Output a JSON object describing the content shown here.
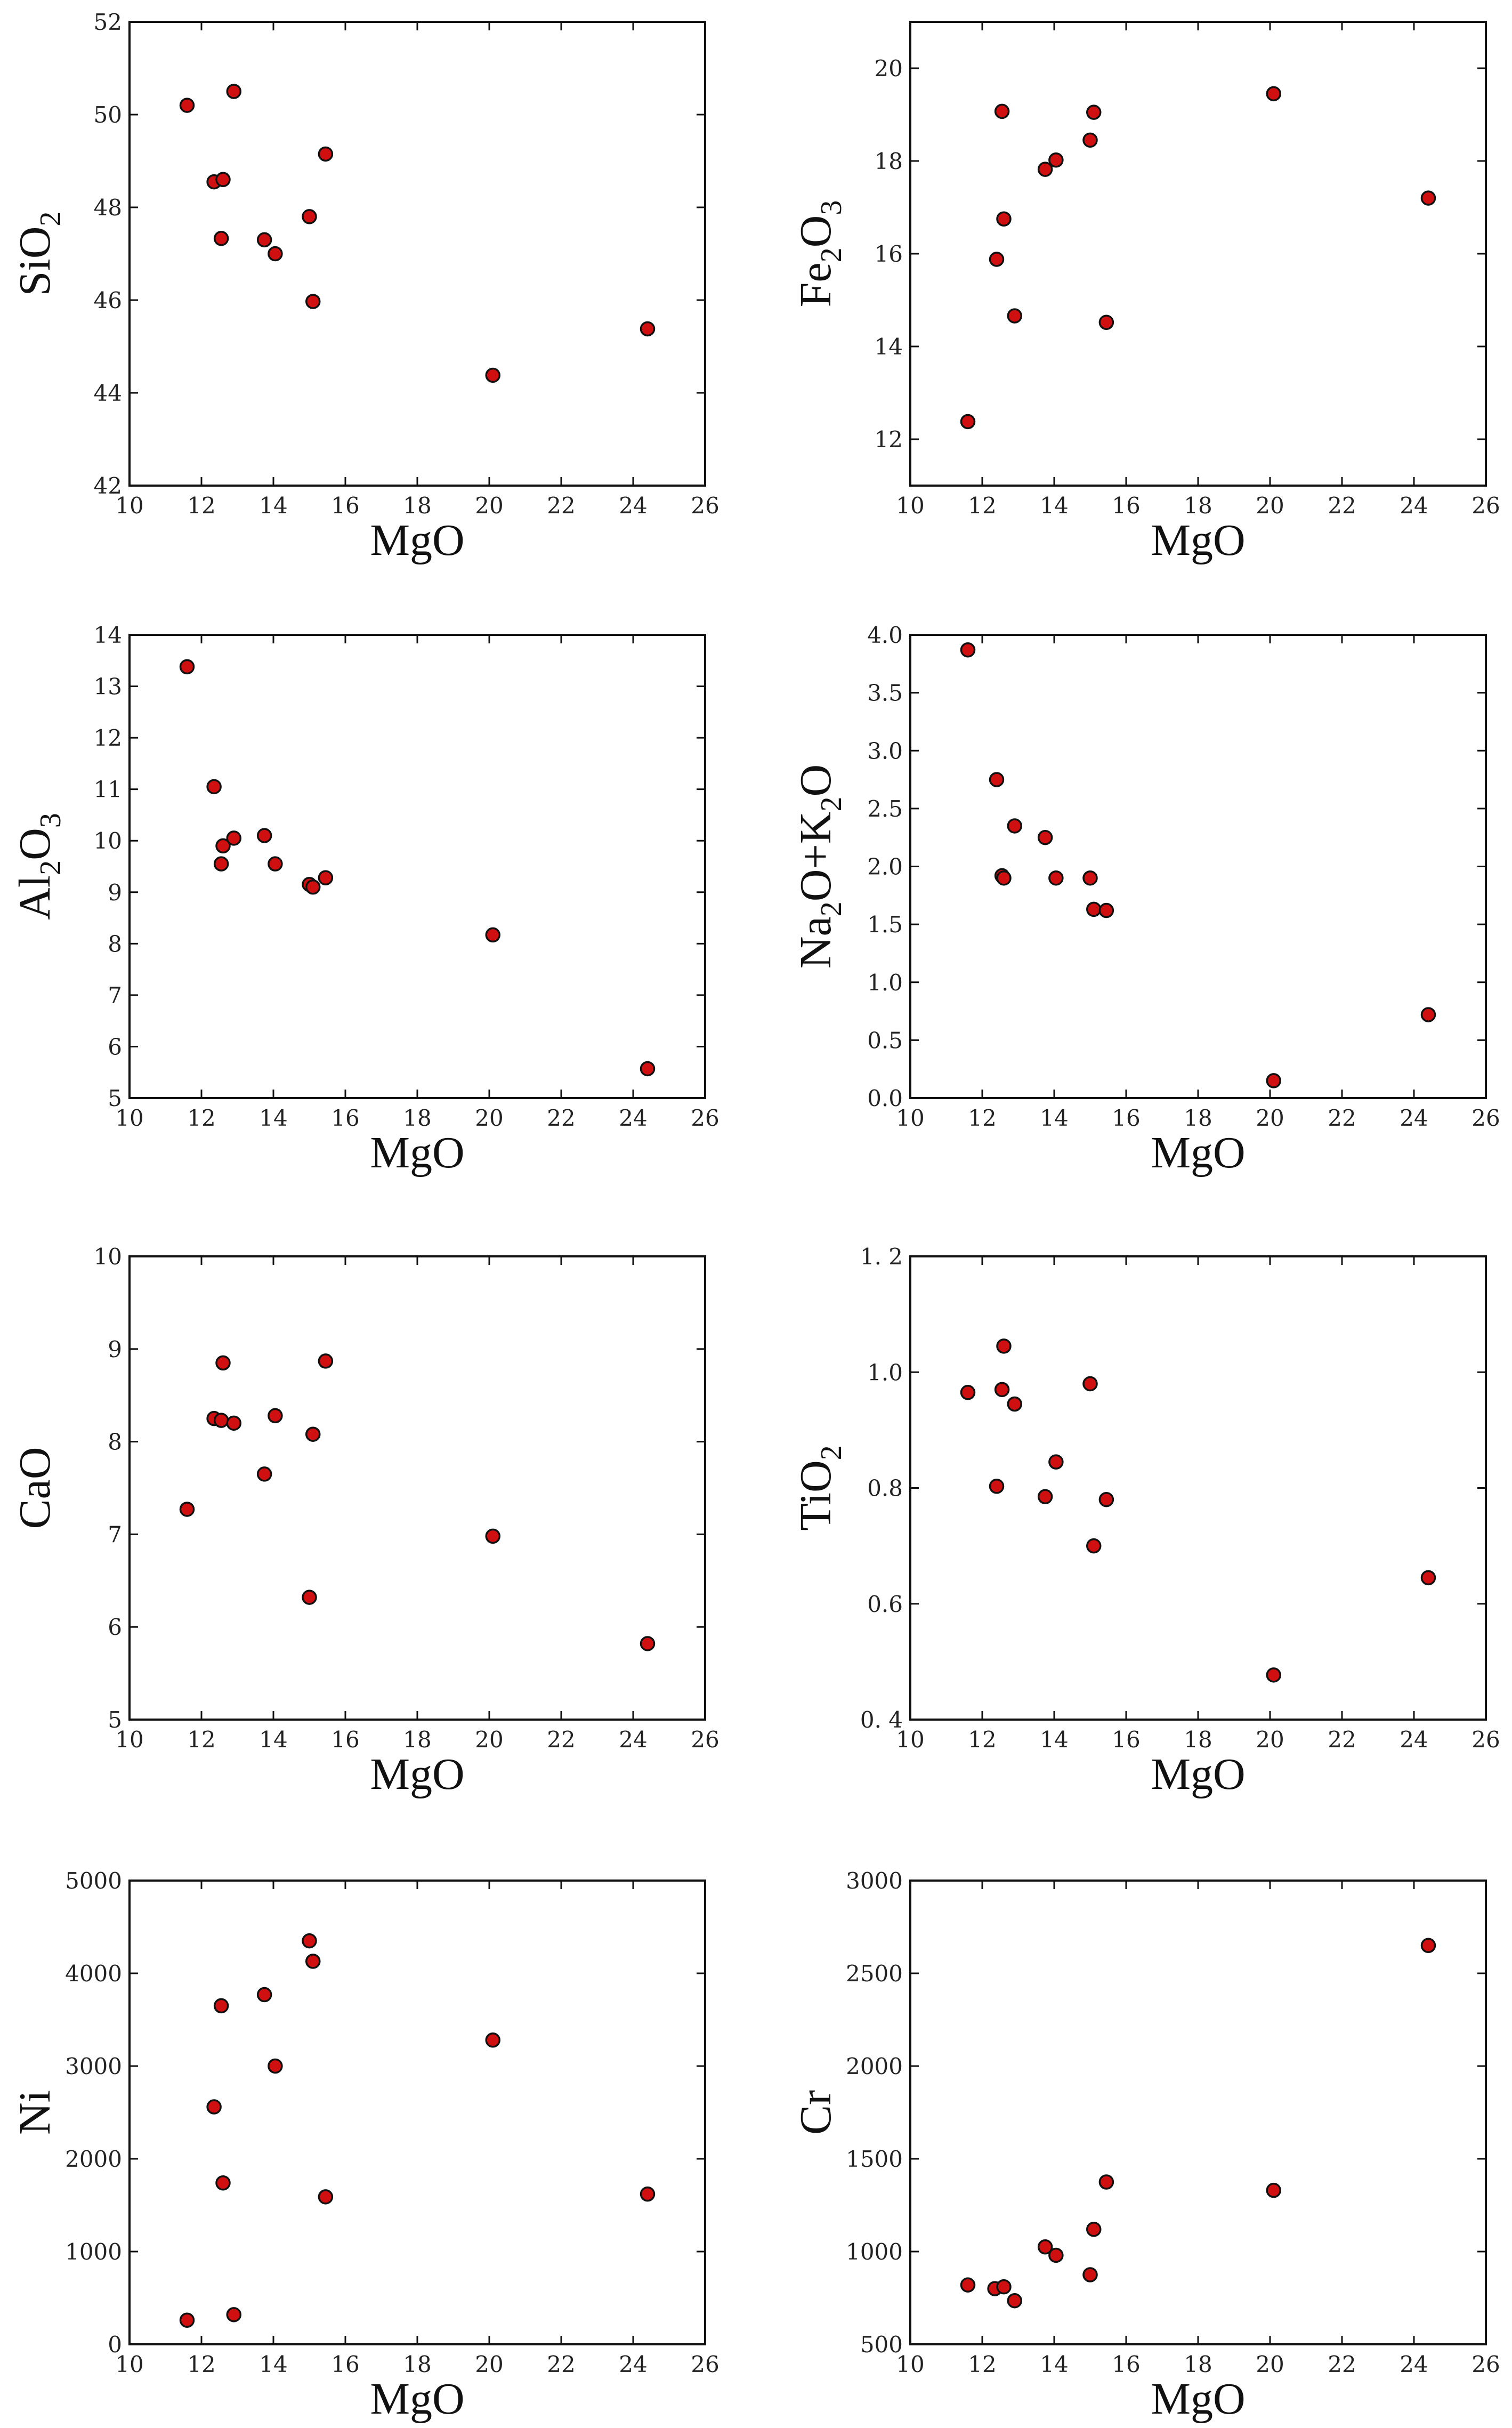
{
  "chart_data": [
    {
      "type": "scatter",
      "xlabel": "MgO",
      "ylabel": [
        {
          "t": "SiO"
        },
        {
          "t": "2",
          "sub": true
        }
      ],
      "xlim": [
        10,
        26
      ],
      "xticks": [
        10,
        12,
        14,
        16,
        18,
        20,
        22,
        24,
        26
      ],
      "ylim": [
        42,
        52
      ],
      "yticks": [
        "42",
        "44",
        "46",
        "48",
        "50",
        "52"
      ],
      "points": [
        [
          11.6,
          50.2
        ],
        [
          12.9,
          50.5
        ],
        [
          12.35,
          48.55
        ],
        [
          12.6,
          48.6
        ],
        [
          12.55,
          47.33
        ],
        [
          13.75,
          47.3
        ],
        [
          14.05,
          47.0
        ],
        [
          15.0,
          47.8
        ],
        [
          15.45,
          49.15
        ],
        [
          15.1,
          45.97
        ],
        [
          20.1,
          44.38
        ],
        [
          24.4,
          45.38
        ]
      ],
      "marker_color": "#d01010"
    },
    {
      "type": "scatter",
      "xlabel": "MgO",
      "ylabel": [
        {
          "t": "Fe"
        },
        {
          "t": "2",
          "sub": true
        },
        {
          "t": "O"
        },
        {
          "t": "3",
          "sub": true
        }
      ],
      "xlim": [
        10,
        26
      ],
      "xticks": [
        10,
        12,
        14,
        16,
        18,
        20,
        22,
        24,
        26
      ],
      "ylim": [
        11,
        21
      ],
      "yticks": [
        "12",
        "14",
        "16",
        "18",
        "20"
      ],
      "points": [
        [
          11.6,
          12.38
        ],
        [
          12.55,
          19.07
        ],
        [
          12.4,
          15.88
        ],
        [
          12.6,
          16.75
        ],
        [
          12.9,
          14.66
        ],
        [
          13.75,
          17.82
        ],
        [
          14.05,
          18.02
        ],
        [
          15.0,
          18.45
        ],
        [
          15.1,
          19.05
        ],
        [
          15.45,
          14.52
        ],
        [
          20.1,
          19.45
        ],
        [
          24.4,
          17.2
        ]
      ],
      "marker_color": "#d01010"
    },
    {
      "type": "scatter",
      "xlabel": "MgO",
      "ylabel": [
        {
          "t": "Al"
        },
        {
          "t": "2",
          "sub": true
        },
        {
          "t": "O"
        },
        {
          "t": "3",
          "sub": true
        }
      ],
      "xlim": [
        10,
        26
      ],
      "xticks": [
        10,
        12,
        14,
        16,
        18,
        20,
        22,
        24,
        26
      ],
      "ylim": [
        5,
        14
      ],
      "yticks": [
        "5",
        "6",
        "7",
        "8",
        "9",
        "10",
        "11",
        "12",
        "13",
        "14"
      ],
      "points": [
        [
          11.6,
          13.38
        ],
        [
          12.35,
          11.05
        ],
        [
          12.6,
          9.9
        ],
        [
          12.55,
          9.55
        ],
        [
          12.9,
          10.05
        ],
        [
          13.75,
          10.1
        ],
        [
          14.05,
          9.55
        ],
        [
          15.0,
          9.15
        ],
        [
          15.1,
          9.1
        ],
        [
          15.45,
          9.28
        ],
        [
          20.1,
          8.17
        ],
        [
          24.4,
          5.57
        ]
      ],
      "marker_color": "#d01010"
    },
    {
      "type": "scatter",
      "xlabel": "MgO",
      "ylabel": [
        {
          "t": "Na"
        },
        {
          "t": "2",
          "sub": true
        },
        {
          "t": "O+K"
        },
        {
          "t": "2",
          "sub": true
        },
        {
          "t": "O"
        }
      ],
      "xlim": [
        10,
        26
      ],
      "xticks": [
        10,
        12,
        14,
        16,
        18,
        20,
        22,
        24,
        26
      ],
      "ylim": [
        0,
        4
      ],
      "yticks": [
        "0.0",
        "0.5",
        "1.0",
        "1.5",
        "2.0",
        "2.5",
        "3.0",
        "3.5",
        "4.0"
      ],
      "points": [
        [
          11.6,
          3.87
        ],
        [
          12.4,
          2.75
        ],
        [
          12.55,
          1.92
        ],
        [
          12.6,
          1.9
        ],
        [
          12.9,
          2.35
        ],
        [
          13.75,
          2.25
        ],
        [
          14.05,
          1.9
        ],
        [
          15.0,
          1.9
        ],
        [
          15.1,
          1.63
        ],
        [
          15.45,
          1.62
        ],
        [
          20.1,
          0.15
        ],
        [
          24.4,
          0.72
        ]
      ],
      "marker_color": "#d01010"
    },
    {
      "type": "scatter",
      "xlabel": "MgO",
      "ylabel": [
        {
          "t": "CaO"
        }
      ],
      "xlim": [
        10,
        26
      ],
      "xticks": [
        10,
        12,
        14,
        16,
        18,
        20,
        22,
        24,
        26
      ],
      "ylim": [
        5,
        10
      ],
      "yticks": [
        "5",
        "6",
        "7",
        "8",
        "9",
        "10"
      ],
      "points": [
        [
          11.6,
          7.27
        ],
        [
          12.35,
          8.25
        ],
        [
          12.55,
          8.23
        ],
        [
          12.6,
          8.85
        ],
        [
          12.9,
          8.2
        ],
        [
          13.75,
          7.65
        ],
        [
          14.05,
          8.28
        ],
        [
          15.0,
          6.32
        ],
        [
          15.1,
          8.08
        ],
        [
          15.45,
          8.87
        ],
        [
          20.1,
          6.98
        ],
        [
          24.4,
          5.82
        ]
      ],
      "marker_color": "#d01010"
    },
    {
      "type": "scatter",
      "xlabel": "MgO",
      "ylabel": [
        {
          "t": "TiO"
        },
        {
          "t": "2",
          "sub": true
        }
      ],
      "xlim": [
        10,
        26
      ],
      "xticks": [
        10,
        12,
        14,
        16,
        18,
        20,
        22,
        24,
        26
      ],
      "ylim": [
        0.4,
        1.2
      ],
      "yticks": [
        "0. 4",
        "0.6",
        "0.8",
        "1.0",
        "1. 2"
      ],
      "points": [
        [
          11.6,
          0.965
        ],
        [
          12.4,
          0.803
        ],
        [
          12.55,
          0.97
        ],
        [
          12.6,
          1.045
        ],
        [
          12.9,
          0.945
        ],
        [
          13.75,
          0.785
        ],
        [
          14.05,
          0.845
        ],
        [
          15.0,
          0.98
        ],
        [
          15.1,
          0.7
        ],
        [
          15.45,
          0.78
        ],
        [
          20.1,
          0.477
        ],
        [
          24.4,
          0.645
        ]
      ],
      "marker_color": "#d01010"
    },
    {
      "type": "scatter",
      "xlabel": "MgO",
      "ylabel": [
        {
          "t": "Ni"
        }
      ],
      "xlim": [
        10,
        26
      ],
      "xticks": [
        10,
        12,
        14,
        16,
        18,
        20,
        22,
        24,
        26
      ],
      "ylim": [
        0,
        5000
      ],
      "yticks": [
        "0",
        "1000",
        "2000",
        "3000",
        "4000",
        "5000"
      ],
      "points": [
        [
          11.6,
          260
        ],
        [
          12.9,
          320
        ],
        [
          12.35,
          2560
        ],
        [
          12.55,
          3650
        ],
        [
          12.6,
          1740
        ],
        [
          13.75,
          3770
        ],
        [
          14.05,
          3000
        ],
        [
          15.0,
          4350
        ],
        [
          15.1,
          4130
        ],
        [
          15.45,
          1590
        ],
        [
          20.1,
          3280
        ],
        [
          24.4,
          1620
        ]
      ],
      "marker_color": "#d01010"
    },
    {
      "type": "scatter",
      "xlabel": "MgO",
      "ylabel": [
        {
          "t": "Cr"
        }
      ],
      "xlim": [
        10,
        26
      ],
      "xticks": [
        10,
        12,
        14,
        16,
        18,
        20,
        22,
        24,
        26
      ],
      "ylim": [
        500,
        3000
      ],
      "yticks": [
        "500",
        "1000",
        "1500",
        "2000",
        "2500",
        "3000"
      ],
      "points": [
        [
          11.6,
          820
        ],
        [
          12.35,
          800
        ],
        [
          12.6,
          810
        ],
        [
          12.9,
          735
        ],
        [
          13.75,
          1025
        ],
        [
          14.05,
          980
        ],
        [
          15.0,
          875
        ],
        [
          15.1,
          1120
        ],
        [
          15.45,
          1375
        ],
        [
          20.1,
          1330
        ],
        [
          24.4,
          2650
        ]
      ],
      "marker_color": "#d01010"
    }
  ]
}
